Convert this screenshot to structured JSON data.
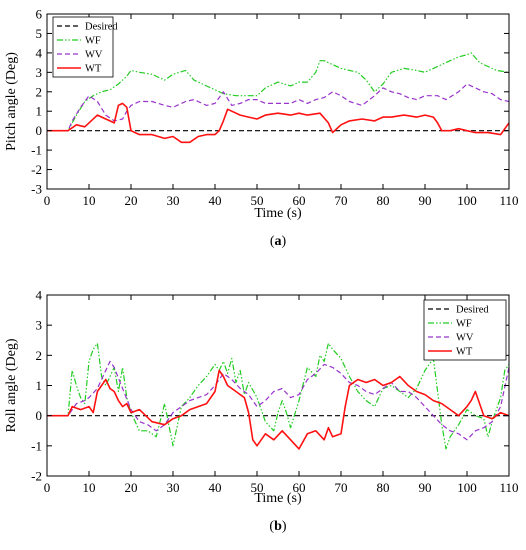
{
  "figure": {
    "captions": [
      {
        "open": "(",
        "letter": "a",
        "close": ")"
      },
      {
        "open": "(",
        "letter": "b",
        "close": ")"
      }
    ]
  },
  "colors": {
    "Desired": "#000000",
    "WF": "#22cc22",
    "WV": "#9933cc",
    "WT": "#ff1111"
  },
  "chart_data": [
    {
      "type": "line",
      "xlabel": "Time (s)",
      "ylabel": "Pitch angle (Deg)",
      "xlim": [
        0,
        110
      ],
      "ylim": [
        -3,
        6
      ],
      "xticks": [
        0,
        10,
        20,
        30,
        40,
        50,
        60,
        70,
        80,
        90,
        100,
        110
      ],
      "yticks": [
        -3,
        -2,
        -1,
        0,
        1,
        2,
        3,
        4,
        5,
        6
      ],
      "legend_position": "top-left",
      "grid": false,
      "series": [
        {
          "name": "Desired",
          "style": "dashed",
          "x": [
            0,
            110
          ],
          "y": [
            0,
            0
          ]
        },
        {
          "name": "WF",
          "style": "dashdotdot",
          "x": [
            0,
            5,
            7,
            9,
            11,
            13,
            15,
            17,
            18,
            19,
            20,
            22,
            25,
            28,
            30,
            33,
            35,
            37,
            39,
            40,
            42,
            45,
            48,
            50,
            52,
            55,
            58,
            60,
            62,
            64,
            65,
            66,
            68,
            70,
            72,
            74,
            76,
            78,
            80,
            82,
            85,
            88,
            90,
            92,
            95,
            98,
            100,
            101,
            103,
            105,
            107,
            110
          ],
          "y": [
            0,
            0,
            0.8,
            1.5,
            1.8,
            2.0,
            2.1,
            2.4,
            2.6,
            2.8,
            3.1,
            3.0,
            2.9,
            2.6,
            2.9,
            3.1,
            2.6,
            2.4,
            2.2,
            2.1,
            1.9,
            1.8,
            1.8,
            1.8,
            2.2,
            2.5,
            2.3,
            2.5,
            2.5,
            3.0,
            3.6,
            3.6,
            3.4,
            3.2,
            3.1,
            3.0,
            2.6,
            2.0,
            2.4,
            3.0,
            3.2,
            3.1,
            3.0,
            3.2,
            3.5,
            3.8,
            3.9,
            4.0,
            3.5,
            3.3,
            3.1,
            3.0
          ]
        },
        {
          "name": "WV",
          "style": "dashed",
          "x": [
            0,
            5,
            6,
            8,
            10,
            12,
            14,
            16,
            18,
            19,
            20,
            22,
            25,
            28,
            30,
            33,
            35,
            38,
            40,
            41,
            42,
            44,
            46,
            48,
            50,
            52,
            55,
            58,
            60,
            62,
            64,
            66,
            68,
            70,
            72,
            75,
            78,
            80,
            82,
            84,
            86,
            88,
            90,
            93,
            95,
            98,
            100,
            102,
            104,
            106,
            108,
            110
          ],
          "y": [
            0,
            0,
            0.5,
            1.2,
            1.8,
            1.5,
            0.8,
            0.5,
            0.6,
            1.0,
            1.3,
            1.5,
            1.5,
            1.3,
            1.2,
            1.5,
            1.6,
            1.3,
            1.4,
            1.7,
            2.0,
            1.3,
            1.4,
            1.6,
            1.6,
            1.4,
            1.4,
            1.4,
            1.6,
            1.4,
            1.6,
            1.7,
            2.0,
            1.8,
            1.5,
            1.3,
            1.8,
            2.2,
            2.0,
            1.9,
            1.7,
            1.6,
            1.8,
            1.8,
            1.6,
            2.0,
            2.4,
            2.2,
            2.0,
            1.9,
            1.6,
            1.5
          ]
        },
        {
          "name": "WT",
          "style": "solid",
          "x": [
            0,
            5,
            7,
            9,
            10,
            12,
            14,
            15,
            16,
            17,
            18,
            19,
            20,
            22,
            25,
            28,
            30,
            32,
            34,
            36,
            38,
            40,
            41,
            42,
            43,
            44,
            46,
            48,
            50,
            52,
            55,
            58,
            60,
            62,
            65,
            67,
            68,
            70,
            72,
            75,
            78,
            80,
            82,
            85,
            88,
            90,
            92,
            93,
            94,
            96,
            98,
            100,
            102,
            105,
            108,
            110
          ],
          "y": [
            0,
            0,
            0.3,
            0.2,
            0.4,
            0.8,
            0.6,
            0.5,
            0.4,
            1.3,
            1.4,
            1.2,
            0.0,
            -0.2,
            -0.2,
            -0.4,
            -0.3,
            -0.6,
            -0.6,
            -0.3,
            -0.2,
            -0.2,
            0.0,
            0.5,
            1.1,
            1.0,
            0.8,
            0.7,
            0.6,
            0.8,
            0.9,
            0.8,
            0.9,
            0.8,
            0.9,
            0.4,
            -0.1,
            0.3,
            0.5,
            0.6,
            0.5,
            0.7,
            0.7,
            0.8,
            0.7,
            0.8,
            0.7,
            0.4,
            0.0,
            0.0,
            0.1,
            0.0,
            -0.1,
            -0.1,
            -0.2,
            0.4
          ]
        }
      ]
    },
    {
      "type": "line",
      "xlabel": "Time (s)",
      "ylabel": "Roll angle (Deg)",
      "xlim": [
        0,
        110
      ],
      "ylim": [
        -2,
        4
      ],
      "xticks": [
        0,
        10,
        20,
        30,
        40,
        50,
        60,
        70,
        80,
        90,
        100,
        110
      ],
      "yticks": [
        -2,
        -1,
        0,
        1,
        2,
        3,
        4
      ],
      "legend_position": "top-right",
      "grid": false,
      "series": [
        {
          "name": "Desired",
          "style": "dashed",
          "x": [
            0,
            110
          ],
          "y": [
            0,
            0
          ]
        },
        {
          "name": "WF",
          "style": "dashdotdot",
          "x": [
            0,
            5,
            6,
            7,
            8,
            9,
            10,
            11,
            12,
            13,
            14,
            15,
            16,
            17,
            18,
            19,
            20,
            22,
            24,
            26,
            28,
            30,
            32,
            34,
            36,
            38,
            40,
            41,
            42,
            43,
            44,
            45,
            46,
            47,
            48,
            50,
            52,
            54,
            55,
            56,
            57,
            58,
            60,
            62,
            64,
            65,
            66,
            67,
            68,
            70,
            72,
            74,
            76,
            78,
            80,
            82,
            84,
            86,
            88,
            90,
            92,
            94,
            95,
            96,
            98,
            100,
            102,
            104,
            105,
            106,
            107,
            108,
            109,
            110
          ],
          "y": [
            0,
            0,
            1.5,
            1.0,
            0.6,
            0.4,
            1.8,
            2.2,
            2.4,
            1.3,
            1.0,
            1.3,
            1.6,
            0.8,
            1.6,
            0.6,
            0.1,
            -0.5,
            -0.5,
            -0.7,
            0.4,
            -1.0,
            0.3,
            0.6,
            1.0,
            1.3,
            1.7,
            1.5,
            1.8,
            1.4,
            1.9,
            1.1,
            1.5,
            0.7,
            1.1,
            0.6,
            -0.2,
            -0.5,
            0.1,
            0.5,
            0.1,
            -0.4,
            0.5,
            1.6,
            1.3,
            2.0,
            1.8,
            2.4,
            2.2,
            1.9,
            1.3,
            0.8,
            0.5,
            0.3,
            0.9,
            1.0,
            0.8,
            0.6,
            0.9,
            1.5,
            1.9,
            -0.3,
            -1.1,
            -0.7,
            -0.3,
            0.2,
            0.0,
            -0.1,
            -0.7,
            -0.2,
            0.2,
            0.6,
            1.5,
            1.7
          ]
        },
        {
          "name": "WV",
          "style": "dashed",
          "x": [
            0,
            5,
            7,
            9,
            10,
            12,
            14,
            15,
            16,
            18,
            20,
            22,
            24,
            26,
            28,
            30,
            32,
            34,
            36,
            38,
            40,
            42,
            44,
            46,
            48,
            50,
            52,
            54,
            56,
            58,
            60,
            62,
            64,
            66,
            68,
            70,
            72,
            74,
            76,
            78,
            80,
            82,
            84,
            86,
            88,
            90,
            92,
            94,
            96,
            98,
            100,
            102,
            104,
            106,
            108,
            110
          ],
          "y": [
            0,
            0,
            0.4,
            0.5,
            0.6,
            0.9,
            1.5,
            1.8,
            1.6,
            0.9,
            0.2,
            -0.2,
            -0.3,
            -0.5,
            -0.3,
            0.1,
            0.3,
            0.5,
            0.6,
            0.7,
            1.0,
            1.4,
            1.2,
            0.9,
            0.7,
            0.3,
            0.5,
            0.8,
            0.9,
            0.6,
            0.7,
            1.2,
            1.4,
            1.7,
            1.6,
            1.4,
            1.1,
            1.0,
            0.8,
            0.7,
            0.9,
            1.1,
            0.8,
            0.8,
            0.6,
            0.3,
            0.0,
            -0.3,
            -0.5,
            -0.6,
            -0.8,
            -0.5,
            -0.4,
            -0.2,
            0.3,
            1.6
          ]
        },
        {
          "name": "WT",
          "style": "solid",
          "x": [
            0,
            5,
            6,
            8,
            10,
            11,
            12,
            13,
            14,
            15,
            16,
            17,
            18,
            19,
            20,
            22,
            25,
            28,
            30,
            32,
            34,
            36,
            38,
            40,
            41,
            42,
            43,
            44,
            45,
            46,
            47,
            48,
            49,
            50,
            52,
            54,
            56,
            58,
            60,
            62,
            64,
            66,
            67,
            68,
            70,
            71,
            72,
            74,
            76,
            78,
            80,
            82,
            84,
            86,
            88,
            90,
            92,
            94,
            96,
            98,
            100,
            101,
            102,
            104,
            106,
            108,
            110
          ],
          "y": [
            0,
            0,
            0.3,
            0.2,
            0.3,
            0.1,
            0.8,
            1.0,
            1.2,
            0.9,
            0.8,
            0.5,
            0.3,
            0.4,
            0.1,
            0.2,
            -0.2,
            -0.3,
            -0.1,
            0.0,
            0.2,
            0.3,
            0.4,
            0.8,
            1.5,
            1.3,
            1.0,
            0.9,
            0.8,
            0.7,
            0.6,
            0.1,
            -0.8,
            -1.0,
            -0.6,
            -0.8,
            -0.5,
            -0.8,
            -1.1,
            -0.6,
            -0.5,
            -0.8,
            -0.4,
            -0.7,
            -0.6,
            0.3,
            1.0,
            1.2,
            1.1,
            1.2,
            1.0,
            1.1,
            1.3,
            1.0,
            0.8,
            0.7,
            0.5,
            0.4,
            0.2,
            0.0,
            0.3,
            0.5,
            0.8,
            0.0,
            -0.1,
            0.1,
            0.0
          ]
        }
      ]
    }
  ]
}
